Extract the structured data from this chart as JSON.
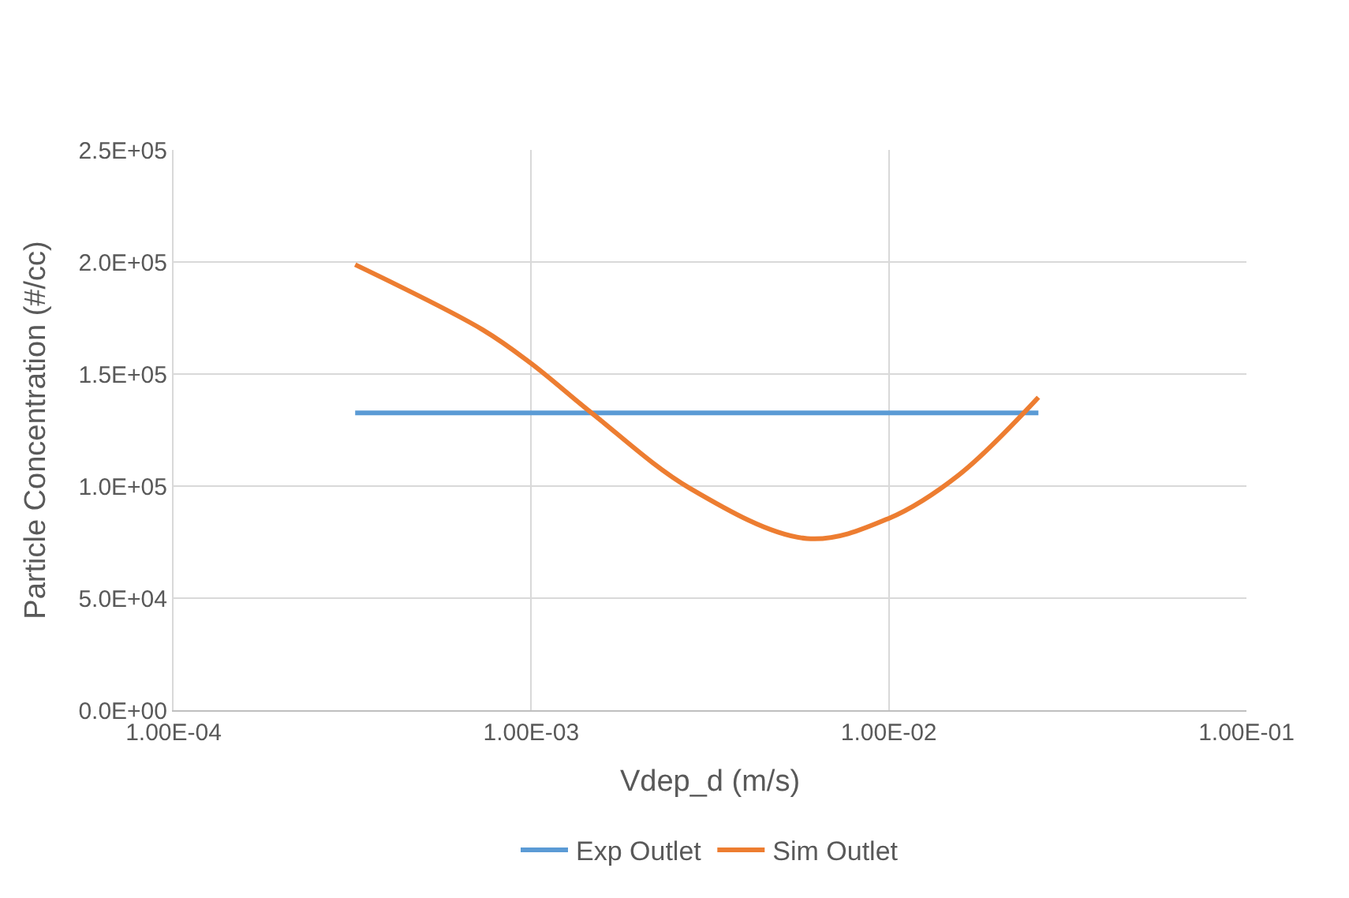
{
  "chart_data": {
    "type": "line",
    "xlabel": "Vdep_d (m/s)",
    "ylabel": "Particle Concentration (#/cc)",
    "log": "x",
    "xlim": [
      0.0001,
      0.1
    ],
    "xticks": [
      {
        "value": 0.0001,
        "label": "1.00E-04"
      },
      {
        "value": 0.001,
        "label": "1.00E-03"
      },
      {
        "value": 0.01,
        "label": "1.00E-02"
      },
      {
        "value": 0.1,
        "label": "1.00E-01"
      }
    ],
    "ylim": [
      0,
      250000
    ],
    "yticks": [
      {
        "value": 0,
        "label": "0.0E+00"
      },
      {
        "value": 50000,
        "label": "5.0E+04"
      },
      {
        "value": 100000,
        "label": "1.0E+05"
      },
      {
        "value": 150000,
        "label": "1.5E+05"
      },
      {
        "value": 200000,
        "label": "2.0E+05"
      },
      {
        "value": 250000,
        "label": "2.5E+05"
      }
    ],
    "grid": true,
    "legend": "bottom",
    "marker": "none",
    "line_style": "solid",
    "series": [
      {
        "name": "Exp Outlet",
        "color": "#5b9bd5",
        "x": [
          0.000322,
          0.0262
        ],
        "values": [
          132700,
          132700
        ]
      },
      {
        "name": "Sim Outlet",
        "color": "#ed7d31",
        "x": [
          0.000322,
          0.000733,
          0.001,
          0.00149,
          0.00278,
          0.00591,
          0.01,
          0.0157,
          0.0262
        ],
        "values": [
          198800,
          169700,
          154700,
          132100,
          99000,
          76600,
          85600,
          105000,
          139600
        ]
      }
    ]
  }
}
